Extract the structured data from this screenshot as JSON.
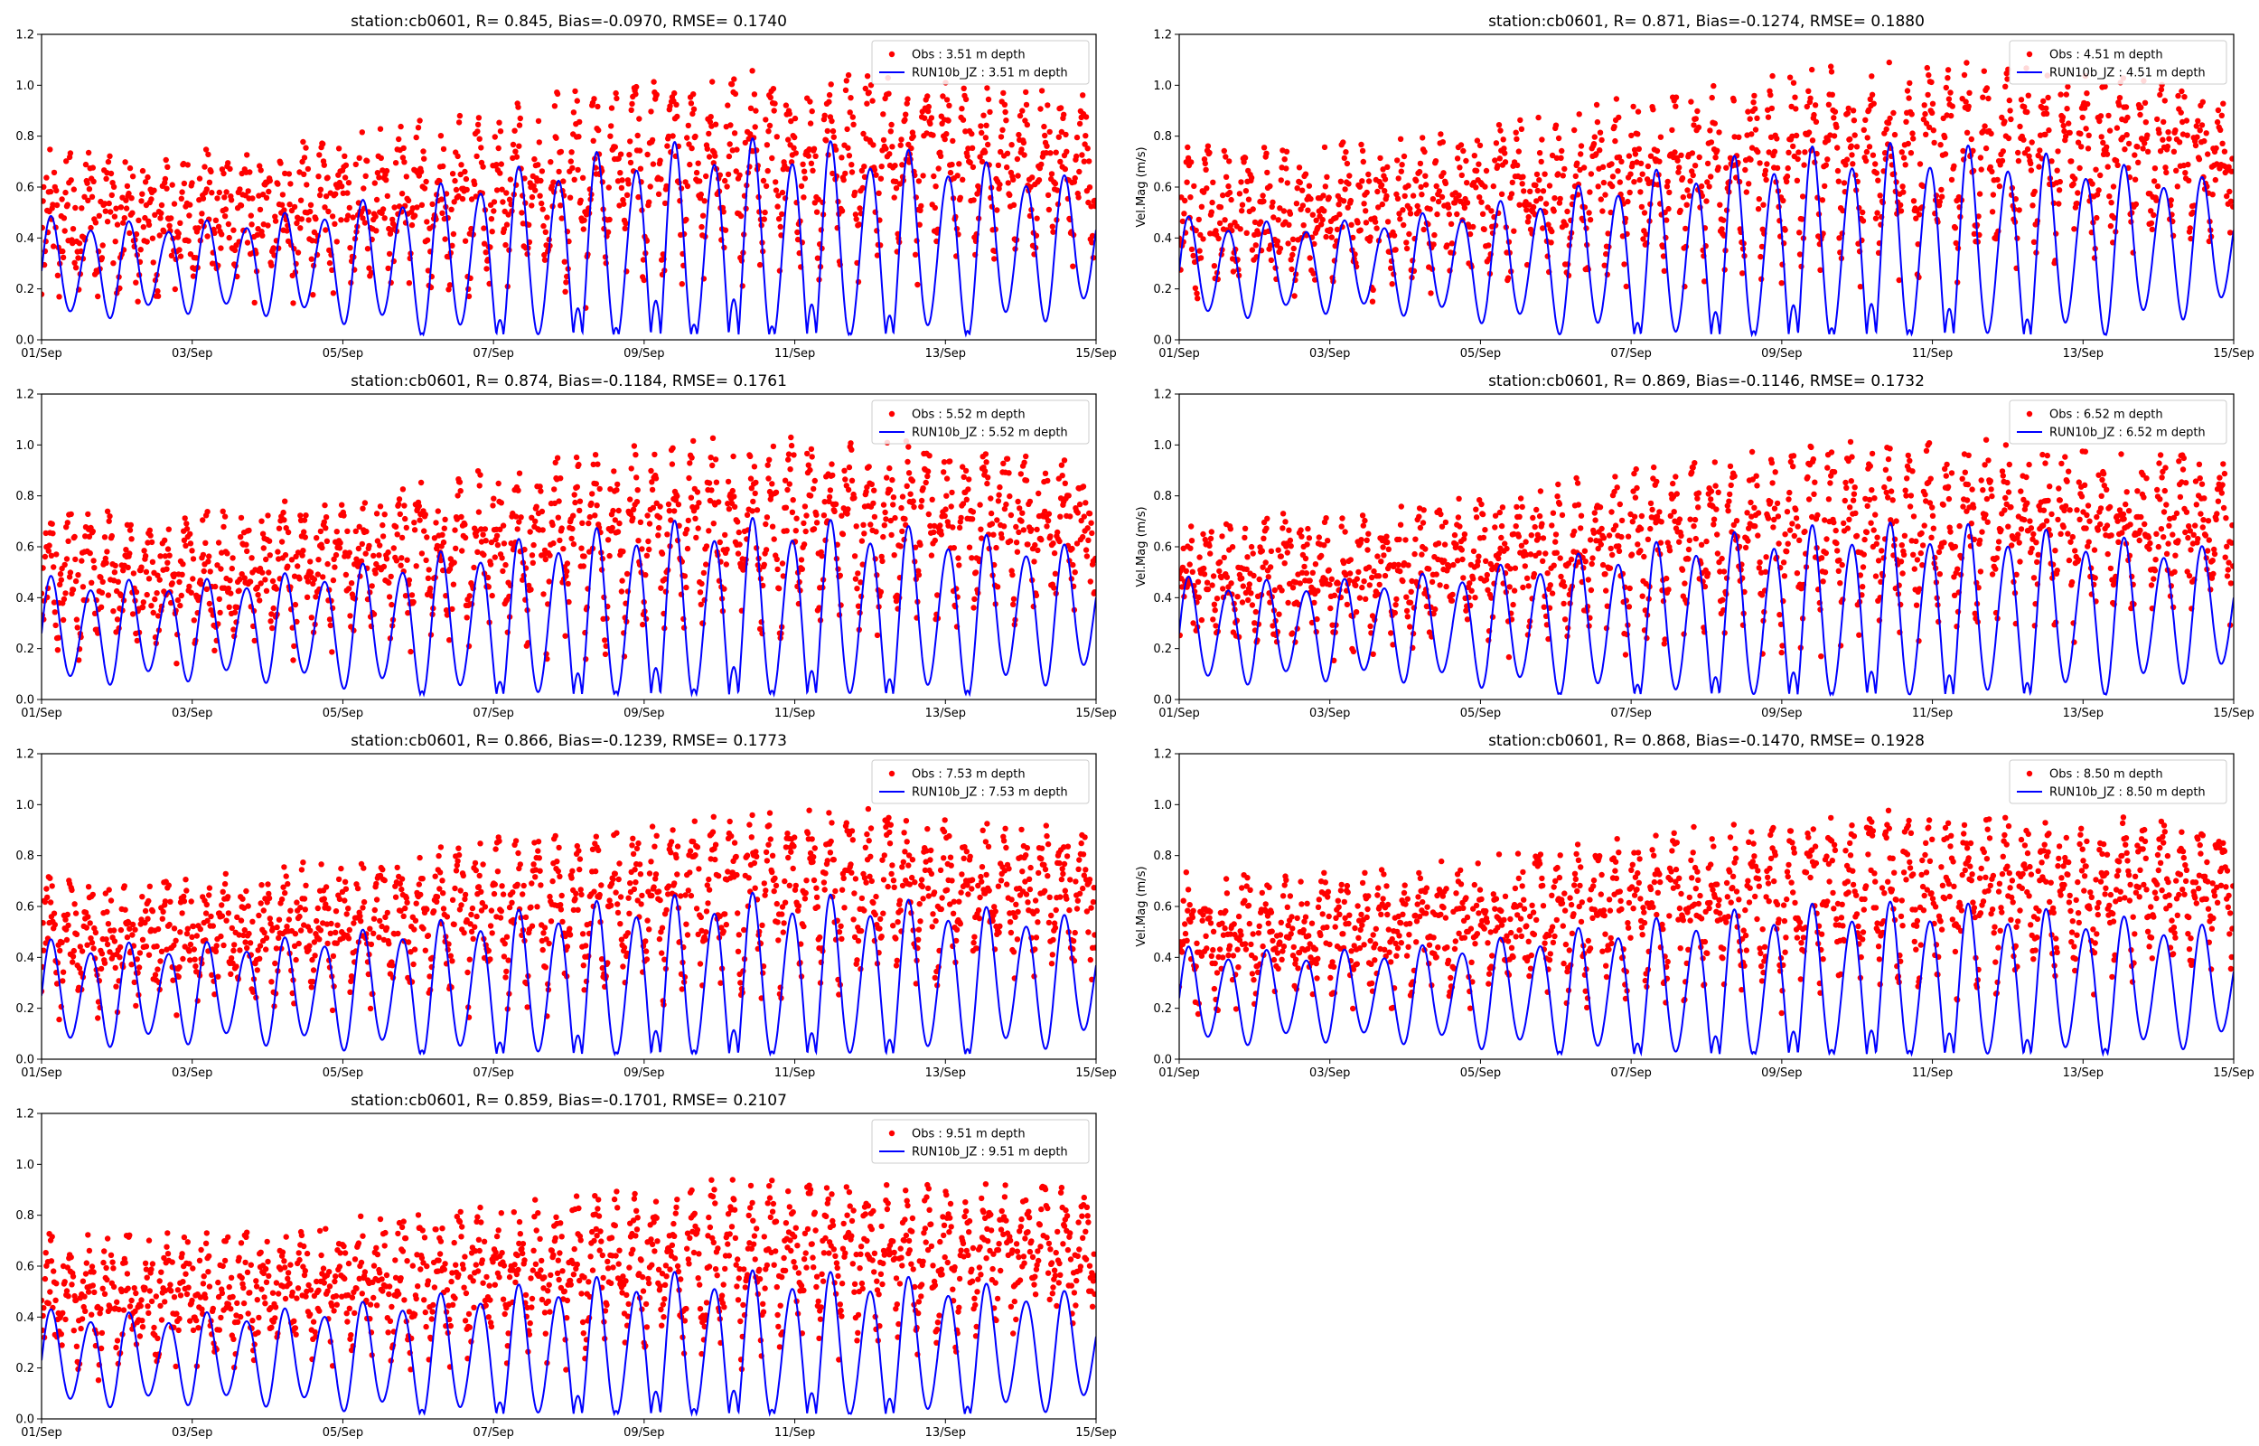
{
  "figure": {
    "background": "#ffffff",
    "obs_color": "#ff0000",
    "model_color": "#0000ff"
  },
  "chart_data": [
    {
      "type": "scatter+line",
      "title": "station:cb0601, R= 0.845, Bias=-0.0970, RMSE= 0.1740",
      "ylabel": "",
      "xticklabels": [
        "01/Sep",
        "03/Sep",
        "05/Sep",
        "07/Sep",
        "09/Sep",
        "11/Sep",
        "13/Sep",
        "15/Sep"
      ],
      "yticklabels": [
        "0.0",
        "0.2",
        "0.4",
        "0.6",
        "0.8",
        "1.0",
        "1.2"
      ],
      "xlim_days": [
        0,
        14
      ],
      "ylim": [
        0,
        1.2
      ],
      "legend_position": "upper right",
      "series": [
        {
          "name": "Obs : 3.51 m depth",
          "kind": "points",
          "color": "#ff0000"
        },
        {
          "name": "RUN10b_JZ : 3.51 m depth",
          "kind": "line",
          "color": "#0000ff"
        }
      ],
      "model": {
        "base": 0.27,
        "trend": 0.1,
        "amp_spring": 0.5,
        "amp_neap": 0.2
      },
      "obs": {
        "base": 0.36,
        "trend": 0.2,
        "amp_spring": 0.56,
        "amp_neap": 0.26,
        "noise": 0.18
      }
    },
    {
      "type": "scatter+line",
      "title": "station:cb0601, R= 0.871, Bias=-0.1274, RMSE= 0.1880",
      "ylabel": "Vel.Mag (m/s)",
      "xticklabels": [
        "01/Sep",
        "03/Sep",
        "05/Sep",
        "07/Sep",
        "09/Sep",
        "11/Sep",
        "13/Sep",
        "15/Sep"
      ],
      "yticklabels": [
        "0.0",
        "0.2",
        "0.4",
        "0.6",
        "0.8",
        "1.0",
        "1.2"
      ],
      "xlim_days": [
        0,
        14
      ],
      "ylim": [
        0,
        1.2
      ],
      "legend_position": "upper right",
      "series": [
        {
          "name": "Obs : 4.51 m depth",
          "kind": "points",
          "color": "#ff0000"
        },
        {
          "name": "RUN10b_JZ : 4.51 m depth",
          "kind": "line",
          "color": "#0000ff"
        }
      ],
      "model": {
        "base": 0.27,
        "trend": 0.1,
        "amp_spring": 0.48,
        "amp_neap": 0.2
      },
      "obs": {
        "base": 0.38,
        "trend": 0.22,
        "amp_spring": 0.56,
        "amp_neap": 0.26,
        "noise": 0.18
      }
    },
    {
      "type": "scatter+line",
      "title": "station:cb0601, R= 0.874, Bias=-0.1184, RMSE= 0.1761",
      "ylabel": "",
      "xticklabels": [
        "01/Sep",
        "03/Sep",
        "05/Sep",
        "07/Sep",
        "09/Sep",
        "11/Sep",
        "13/Sep",
        "15/Sep"
      ],
      "yticklabels": [
        "0.0",
        "0.2",
        "0.4",
        "0.6",
        "0.8",
        "1.0",
        "1.2"
      ],
      "xlim_days": [
        0,
        14
      ],
      "ylim": [
        0,
        1.2
      ],
      "legend_position": "upper right",
      "series": [
        {
          "name": "Obs : 5.52 m depth",
          "kind": "points",
          "color": "#ff0000"
        },
        {
          "name": "RUN10b_JZ : 5.52 m depth",
          "kind": "line",
          "color": "#0000ff"
        }
      ],
      "model": {
        "base": 0.26,
        "trend": 0.08,
        "amp_spring": 0.44,
        "amp_neap": 0.22
      },
      "obs": {
        "base": 0.37,
        "trend": 0.2,
        "amp_spring": 0.52,
        "amp_neap": 0.26,
        "noise": 0.17
      }
    },
    {
      "type": "scatter+line",
      "title": "station:cb0601, R= 0.869, Bias=-0.1146, RMSE= 0.1732",
      "ylabel": "Vel.Mag (m/s)",
      "xticklabels": [
        "01/Sep",
        "03/Sep",
        "05/Sep",
        "07/Sep",
        "09/Sep",
        "11/Sep",
        "13/Sep",
        "15/Sep"
      ],
      "yticklabels": [
        "0.0",
        "0.2",
        "0.4",
        "0.6",
        "0.8",
        "1.0",
        "1.2"
      ],
      "xlim_days": [
        0,
        14
      ],
      "ylim": [
        0,
        1.2
      ],
      "legend_position": "upper right",
      "series": [
        {
          "name": "Obs : 6.52 m depth",
          "kind": "points",
          "color": "#ff0000"
        },
        {
          "name": "RUN10b_JZ : 6.52 m depth",
          "kind": "line",
          "color": "#0000ff"
        }
      ],
      "model": {
        "base": 0.26,
        "trend": 0.08,
        "amp_spring": 0.42,
        "amp_neap": 0.22
      },
      "obs": {
        "base": 0.37,
        "trend": 0.2,
        "amp_spring": 0.5,
        "amp_neap": 0.26,
        "noise": 0.17
      }
    },
    {
      "type": "scatter+line",
      "title": "station:cb0601, R= 0.866, Bias=-0.1239, RMSE= 0.1773",
      "ylabel": "",
      "xticklabels": [
        "01/Sep",
        "03/Sep",
        "05/Sep",
        "07/Sep",
        "09/Sep",
        "11/Sep",
        "13/Sep",
        "15/Sep"
      ],
      "yticklabels": [
        "0.0",
        "0.2",
        "0.4",
        "0.6",
        "0.8",
        "1.0",
        "1.2"
      ],
      "xlim_days": [
        0,
        14
      ],
      "ylim": [
        0,
        1.2
      ],
      "legend_position": "upper right",
      "series": [
        {
          "name": "Obs : 7.53 m depth",
          "kind": "points",
          "color": "#ff0000"
        },
        {
          "name": "RUN10b_JZ : 7.53 m depth",
          "kind": "line",
          "color": "#0000ff"
        }
      ],
      "model": {
        "base": 0.25,
        "trend": 0.06,
        "amp_spring": 0.4,
        "amp_neap": 0.22
      },
      "obs": {
        "base": 0.37,
        "trend": 0.18,
        "amp_spring": 0.48,
        "amp_neap": 0.26,
        "noise": 0.16
      }
    },
    {
      "type": "scatter+line",
      "title": "station:cb0601, R= 0.868, Bias=-0.1470, RMSE= 0.1928",
      "ylabel": "Vel.Mag (m/s)",
      "xticklabels": [
        "01/Sep",
        "03/Sep",
        "05/Sep",
        "07/Sep",
        "09/Sep",
        "11/Sep",
        "13/Sep",
        "15/Sep"
      ],
      "yticklabels": [
        "0.0",
        "0.2",
        "0.4",
        "0.6",
        "0.8",
        "1.0",
        "1.2"
      ],
      "xlim_days": [
        0,
        14
      ],
      "ylim": [
        0,
        1.2
      ],
      "legend_position": "upper right",
      "series": [
        {
          "name": "Obs : 8.50 m depth",
          "kind": "points",
          "color": "#ff0000"
        },
        {
          "name": "RUN10b_JZ : 8.50 m depth",
          "kind": "line",
          "color": "#0000ff"
        }
      ],
      "model": {
        "base": 0.24,
        "trend": 0.05,
        "amp_spring": 0.38,
        "amp_neap": 0.2
      },
      "obs": {
        "base": 0.38,
        "trend": 0.18,
        "amp_spring": 0.46,
        "amp_neap": 0.26,
        "noise": 0.16
      }
    },
    {
      "type": "scatter+line",
      "title": "station:cb0601, R= 0.859, Bias=-0.1701, RMSE= 0.2107",
      "ylabel": "",
      "xticklabels": [
        "01/Sep",
        "03/Sep",
        "05/Sep",
        "07/Sep",
        "09/Sep",
        "11/Sep",
        "13/Sep",
        "15/Sep"
      ],
      "yticklabels": [
        "0.0",
        "0.2",
        "0.4",
        "0.6",
        "0.8",
        "1.0",
        "1.2"
      ],
      "xlim_days": [
        0,
        14
      ],
      "ylim": [
        0,
        1.2
      ],
      "legend_position": "upper right",
      "series": [
        {
          "name": "Obs : 9.51 m depth",
          "kind": "points",
          "color": "#ff0000"
        },
        {
          "name": "RUN10b_JZ : 9.51 m depth",
          "kind": "line",
          "color": "#0000ff"
        }
      ],
      "model": {
        "base": 0.23,
        "trend": 0.04,
        "amp_spring": 0.36,
        "amp_neap": 0.2
      },
      "obs": {
        "base": 0.38,
        "trend": 0.16,
        "amp_spring": 0.44,
        "amp_neap": 0.26,
        "noise": 0.16
      }
    }
  ]
}
